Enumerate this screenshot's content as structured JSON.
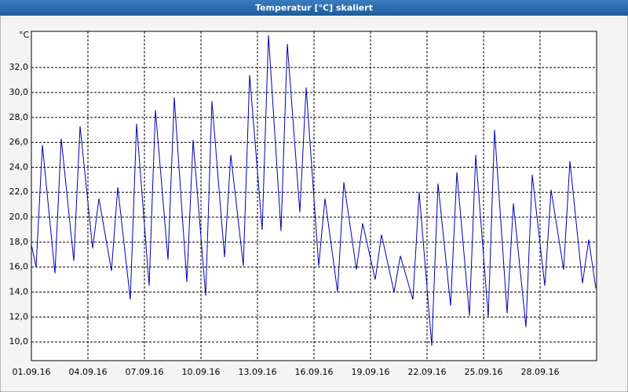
{
  "chart_data": {
    "type": "line",
    "title": "Temperatur [°C] skaliert",
    "y_label": "°C",
    "color": "#0000b0",
    "grid": true,
    "x": [
      "2016-09-01T00:00",
      "2016-09-01T06:00",
      "2016-09-01T14:00",
      "2016-09-02T06:00",
      "2016-09-02T14:00",
      "2016-09-03T06:00",
      "2016-09-03T14:00",
      "2016-09-04T06:00",
      "2016-09-04T14:00",
      "2016-09-05T06:00",
      "2016-09-05T14:00",
      "2016-09-06T06:00",
      "2016-09-06T14:00",
      "2016-09-07T06:00",
      "2016-09-07T14:00",
      "2016-09-08T06:00",
      "2016-09-08T14:00",
      "2016-09-09T06:00",
      "2016-09-09T14:00",
      "2016-09-10T06:00",
      "2016-09-10T14:00",
      "2016-09-11T06:00",
      "2016-09-11T14:00",
      "2016-09-12T06:00",
      "2016-09-12T14:00",
      "2016-09-13T06:00",
      "2016-09-13T14:00",
      "2016-09-14T06:00",
      "2016-09-14T14:00",
      "2016-09-15T06:00",
      "2016-09-15T14:00",
      "2016-09-16T06:00",
      "2016-09-16T14:00",
      "2016-09-17T06:00",
      "2016-09-17T14:00",
      "2016-09-18T06:00",
      "2016-09-18T14:00",
      "2016-09-19T06:00",
      "2016-09-19T14:00",
      "2016-09-20T06:00",
      "2016-09-20T14:00",
      "2016-09-21T06:00",
      "2016-09-21T14:00",
      "2016-09-22T06:00",
      "2016-09-22T14:00",
      "2016-09-23T06:00",
      "2016-09-23T14:00",
      "2016-09-24T06:00",
      "2016-09-24T14:00",
      "2016-09-25T06:00",
      "2016-09-25T14:00",
      "2016-09-26T06:00",
      "2016-09-26T14:00",
      "2016-09-27T06:00",
      "2016-09-27T14:00",
      "2016-09-28T06:00",
      "2016-09-28T14:00",
      "2016-09-29T06:00",
      "2016-09-29T14:00",
      "2016-09-30T06:00",
      "2016-09-30T14:00",
      "2016-09-30T23:00"
    ],
    "values": [
      17.8,
      16.0,
      25.8,
      15.5,
      26.3,
      16.5,
      27.3,
      17.5,
      21.5,
      15.7,
      22.4,
      13.4,
      27.5,
      14.5,
      28.6,
      16.6,
      29.6,
      14.8,
      26.2,
      13.7,
      29.3,
      16.8,
      25.0,
      16.1,
      31.4,
      19.0,
      34.6,
      18.9,
      33.9,
      20.4,
      30.4,
      16.1,
      21.5,
      14.0,
      22.8,
      15.8,
      19.5,
      15.0,
      18.6,
      14.0,
      16.9,
      13.4,
      22.0,
      9.7,
      22.7,
      12.9,
      23.6,
      12.1,
      25.0,
      12.0,
      27.0,
      12.3,
      21.1,
      11.2,
      23.4,
      14.5,
      22.2,
      15.8,
      24.5,
      14.7,
      18.2,
      14.3
    ],
    "xlim": [
      "2016-09-01T00:00",
      "2016-10-01T00:00"
    ],
    "xticks": [
      {
        "value": "2016-09-01T00:00",
        "label": "01.09.16"
      },
      {
        "value": "2016-09-04T00:00",
        "label": "04.09.16"
      },
      {
        "value": "2016-09-07T00:00",
        "label": "07.09.16"
      },
      {
        "value": "2016-09-10T00:00",
        "label": "10.09.16"
      },
      {
        "value": "2016-09-13T00:00",
        "label": "13.09.16"
      },
      {
        "value": "2016-09-16T00:00",
        "label": "16.09.16"
      },
      {
        "value": "2016-09-19T00:00",
        "label": "19.09.16"
      },
      {
        "value": "2016-09-22T00:00",
        "label": "22.09.16"
      },
      {
        "value": "2016-09-25T00:00",
        "label": "25.09.16"
      },
      {
        "value": "2016-09-28T00:00",
        "label": "28.09.16"
      }
    ],
    "ylim": [
      8.5,
      34.9
    ],
    "yticks": [
      {
        "value": 10,
        "label": "10,0"
      },
      {
        "value": 12,
        "label": "12,0"
      },
      {
        "value": 14,
        "label": "14,0"
      },
      {
        "value": 16,
        "label": "16,0"
      },
      {
        "value": 18,
        "label": "18,0"
      },
      {
        "value": 20,
        "label": "20,0"
      },
      {
        "value": 22,
        "label": "22,0"
      },
      {
        "value": 24,
        "label": "24,0"
      },
      {
        "value": 26,
        "label": "26,0"
      },
      {
        "value": 28,
        "label": "28,0"
      },
      {
        "value": 30,
        "label": "30,0"
      },
      {
        "value": 32,
        "label": "32,0"
      }
    ]
  }
}
